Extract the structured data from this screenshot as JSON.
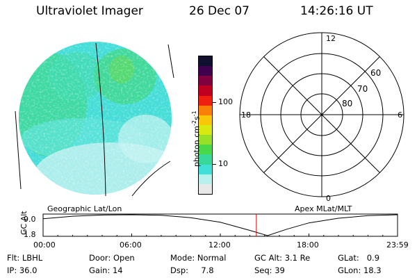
{
  "header": {
    "instrument": "Ultraviolet Imager",
    "date": "26 Dec 07",
    "time": "14:26:16 UT"
  },
  "colorbar": {
    "unit_label": "photon cm",
    "unit_exp1": "-2",
    "unit_mid": "s",
    "unit_exp2": "-1",
    "tick_labels": [
      "100",
      "10"
    ],
    "colors": [
      "#e8e8e8",
      "#b8f0ee",
      "#40e0d8",
      "#38d898",
      "#48d848",
      "#98e028",
      "#d8e810",
      "#f8c808",
      "#f88008",
      "#f02010",
      "#c00020",
      "#800040",
      "#400050",
      "#101030"
    ]
  },
  "polar_grid": {
    "mlt_labels": [
      "12",
      "18",
      "6",
      "0"
    ],
    "mlat_labels": [
      "60",
      "70",
      "80"
    ]
  },
  "footer_labels": {
    "left": "Geographic Lat/Lon",
    "right": "Apex MLat/MLT"
  },
  "altitude_plot": {
    "ylabel": "GC Alt",
    "ytick_labels": [
      "9.0",
      "1.8"
    ],
    "xtick_labels": [
      "00:00",
      "06:00",
      "12:00",
      "18:00",
      "23:59"
    ],
    "ylim": [
      1.8,
      9.0
    ],
    "xlim_hours": [
      0,
      24
    ],
    "current_time_hours": 14.44,
    "curve": [
      {
        "t": 0,
        "alt": 7.6
      },
      {
        "t": 2,
        "alt": 8.5
      },
      {
        "t": 4,
        "alt": 8.9
      },
      {
        "t": 6,
        "alt": 9.0
      },
      {
        "t": 8,
        "alt": 8.8
      },
      {
        "t": 10,
        "alt": 8.0
      },
      {
        "t": 12,
        "alt": 6.4
      },
      {
        "t": 14,
        "alt": 3.6
      },
      {
        "t": 15.2,
        "alt": 1.8
      },
      {
        "t": 16.5,
        "alt": 4.0
      },
      {
        "t": 18,
        "alt": 6.2
      },
      {
        "t": 20,
        "alt": 7.8
      },
      {
        "t": 22,
        "alt": 8.7
      },
      {
        "t": 24,
        "alt": 9.0
      }
    ]
  },
  "info": {
    "row1": [
      {
        "label": "Flt:",
        "value": "LBHL"
      },
      {
        "label": "Door:",
        "value": "Open"
      },
      {
        "label": "Mode:",
        "value": "Normal"
      },
      {
        "label": "GC Alt:",
        "value": "3.1 Re"
      },
      {
        "label": "GLat:",
        "value": "0.9"
      }
    ],
    "row2": [
      {
        "label": "IP:",
        "value": "36.0"
      },
      {
        "label": "Gain:",
        "value": "14"
      },
      {
        "label": "Dsp:",
        "value": "7.8"
      },
      {
        "label": "Seq:",
        "value": "39"
      },
      {
        "label": "GLon:",
        "value": "18.3"
      }
    ]
  }
}
